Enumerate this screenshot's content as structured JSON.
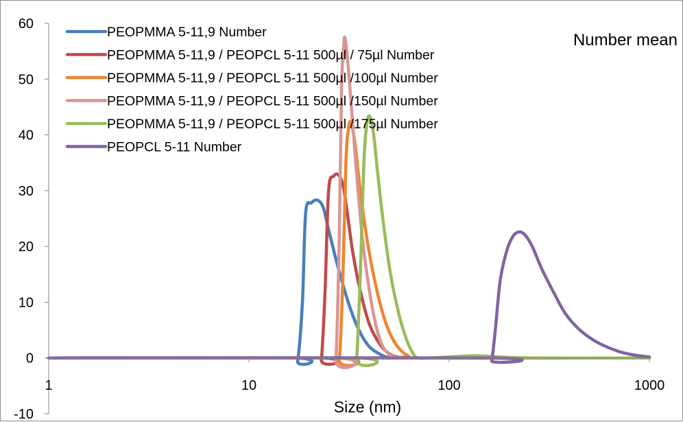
{
  "chart_data": {
    "type": "line",
    "xscale": "log",
    "xlim": [
      1,
      1000
    ],
    "ylim": [
      -10,
      60
    ],
    "xlabel": "Size (nm)",
    "ylabel": "",
    "annotation": "Number mean",
    "x_ticks": [
      1,
      10,
      100,
      1000
    ],
    "y_ticks": [
      -10,
      0,
      10,
      20,
      30,
      40,
      50,
      60
    ],
    "legend_position": "top-left",
    "grid": false,
    "series": [
      {
        "name": "PEOPMMA 5-11,9 Number",
        "color": "#4a7ebb",
        "points": [
          [
            1,
            0
          ],
          [
            16.5,
            0
          ],
          [
            17.5,
            -0.5
          ],
          [
            18.5,
            10
          ],
          [
            19.2,
            26
          ],
          [
            20.5,
            27.8
          ],
          [
            22,
            28.3
          ],
          [
            23.5,
            27
          ],
          [
            25,
            23
          ],
          [
            28,
            16
          ],
          [
            32,
            9
          ],
          [
            36,
            4.5
          ],
          [
            40,
            2
          ],
          [
            45,
            0.7
          ],
          [
            50,
            0.1
          ],
          [
            60,
            0
          ],
          [
            1000,
            0
          ]
        ]
      },
      {
        "name": "PEOPMMA 5-11,9 / PEOPCL 5-11 500µl / 75µl Number",
        "color": "#be4b48",
        "points": [
          [
            1,
            0
          ],
          [
            22,
            0
          ],
          [
            23,
            -0.3
          ],
          [
            24,
            12
          ],
          [
            25,
            30
          ],
          [
            26.5,
            32.6
          ],
          [
            28,
            32.8
          ],
          [
            29.5,
            31
          ],
          [
            31,
            26
          ],
          [
            33,
            19
          ],
          [
            36,
            12
          ],
          [
            40,
            6
          ],
          [
            45,
            2.5
          ],
          [
            50,
            0.8
          ],
          [
            55,
            0.2
          ],
          [
            62,
            0
          ],
          [
            1000,
            0
          ]
        ]
      },
      {
        "name": "PEOPMMA 5-11,9 / PEOPCL 5-11 500µl /100µl Number",
        "color": "#f08430",
        "points": [
          [
            1,
            0
          ],
          [
            27.5,
            0
          ],
          [
            28.3,
            -0.3
          ],
          [
            29.5,
            15
          ],
          [
            30.5,
            35
          ],
          [
            31.5,
            41.5
          ],
          [
            32.5,
            42
          ],
          [
            34,
            38
          ],
          [
            36,
            30
          ],
          [
            39,
            21
          ],
          [
            43,
            13
          ],
          [
            48,
            6.5
          ],
          [
            53,
            3
          ],
          [
            58,
            1.2
          ],
          [
            63,
            0.3
          ],
          [
            68,
            0
          ],
          [
            1000,
            0
          ]
        ]
      },
      {
        "name": "PEOPMMA 5-11,9 / PEOPCL 5-11 500µl /150µl Number",
        "color": "#d99694",
        "points": [
          [
            1,
            0
          ],
          [
            26.5,
            0
          ],
          [
            27.2,
            -0.3
          ],
          [
            28.2,
            20
          ],
          [
            29,
            48
          ],
          [
            29.8,
            56.5
          ],
          [
            30.3,
            57
          ],
          [
            31.2,
            53
          ],
          [
            32.5,
            45
          ],
          [
            34.5,
            33
          ],
          [
            37,
            21
          ],
          [
            40,
            12
          ],
          [
            43,
            6
          ],
          [
            46,
            2.5
          ],
          [
            50,
            0.7
          ],
          [
            55,
            0.1
          ],
          [
            60,
            0
          ],
          [
            1000,
            0
          ]
        ]
      },
      {
        "name": "PEOPMMA 5-11,9 / PEOPCL 5-11 500µl /175µl Number",
        "color": "#9bbb59",
        "points": [
          [
            1,
            0
          ],
          [
            33.5,
            0
          ],
          [
            34.5,
            -0.3
          ],
          [
            36,
            15
          ],
          [
            37.5,
            35
          ],
          [
            39,
            42.5
          ],
          [
            40.5,
            43
          ],
          [
            42,
            40
          ],
          [
            44,
            33
          ],
          [
            47,
            24
          ],
          [
            51,
            15
          ],
          [
            56,
            8
          ],
          [
            61,
            3.5
          ],
          [
            66,
            0.8
          ],
          [
            70,
            0
          ],
          [
            80,
            0
          ],
          [
            100,
            0.2
          ],
          [
            130,
            0.4
          ],
          [
            160,
            0.3
          ],
          [
            200,
            0.1
          ],
          [
            300,
            0
          ],
          [
            1000,
            0
          ]
        ]
      },
      {
        "name": "PEOPCL 5-11 Number",
        "color": "#8064a2",
        "points": [
          [
            1,
            0
          ],
          [
            158,
            0
          ],
          [
            163,
            -0.5
          ],
          [
            170,
            5
          ],
          [
            180,
            14
          ],
          [
            195,
            19.5
          ],
          [
            210,
            22
          ],
          [
            225,
            22.6
          ],
          [
            240,
            22
          ],
          [
            260,
            20
          ],
          [
            290,
            16
          ],
          [
            330,
            12
          ],
          [
            380,
            8
          ],
          [
            450,
            5
          ],
          [
            550,
            2.8
          ],
          [
            700,
            1.2
          ],
          [
            850,
            0.5
          ],
          [
            1000,
            0.2
          ]
        ]
      }
    ]
  }
}
